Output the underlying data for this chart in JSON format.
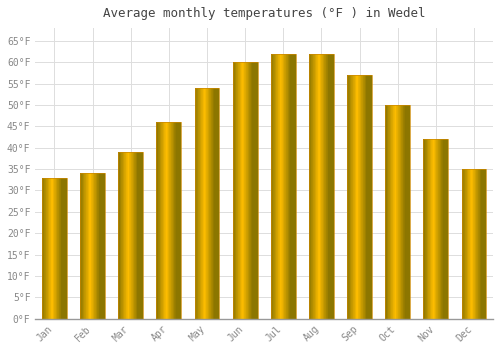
{
  "title": "Average monthly temperatures (°F ) in Wedel",
  "months": [
    "Jan",
    "Feb",
    "Mar",
    "Apr",
    "May",
    "Jun",
    "Jul",
    "Aug",
    "Sep",
    "Oct",
    "Nov",
    "Dec"
  ],
  "values": [
    33,
    34,
    39,
    46,
    54,
    60,
    62,
    62,
    57,
    50,
    42,
    35
  ],
  "bar_color_center": "#FFD060",
  "bar_color_edge": "#FFA010",
  "background_color": "#FFFFFF",
  "plot_bg_color": "#FFFFFF",
  "ylim": [
    0,
    68
  ],
  "yticks": [
    0,
    5,
    10,
    15,
    20,
    25,
    30,
    35,
    40,
    45,
    50,
    55,
    60,
    65
  ],
  "title_fontsize": 9,
  "tick_fontsize": 7,
  "grid_color": "#DDDDDD",
  "font_family": "monospace",
  "tick_color": "#888888",
  "bar_width": 0.65
}
